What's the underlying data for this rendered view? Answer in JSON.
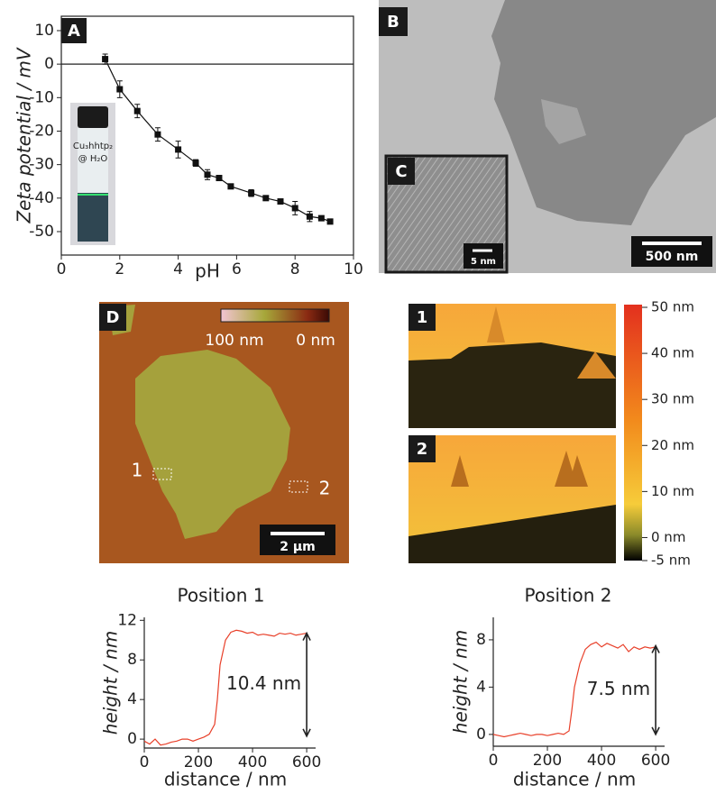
{
  "chart_data": [
    {
      "type": "line",
      "panel_label": "A",
      "xlabel": "pH",
      "ylabel": "Zeta potential / mV",
      "inset_text": [
        "Cu₃hhtp₂",
        "@ H₂O"
      ],
      "xlim": [
        0,
        10
      ],
      "ylim": [
        -57,
        14.3
      ],
      "xticks": [
        0,
        2,
        4,
        6,
        8,
        10
      ],
      "yticks": [
        10,
        0,
        -10,
        -20,
        -30,
        -40,
        -50
      ],
      "reference_line": 0,
      "box": true,
      "series": [
        {
          "color": "#111111",
          "x": [
            1.5,
            2.0,
            2.6,
            3.3,
            4.0,
            4.6,
            5.0,
            5.4,
            5.8,
            6.5,
            7.0,
            7.5,
            8.0,
            8.5,
            8.9,
            9.2
          ],
          "values": [
            1.5,
            -7.5,
            -14,
            -21,
            -25.5,
            -29.5,
            -33,
            -34,
            -36.5,
            -38.5,
            -40,
            -41,
            -43,
            -45.5,
            -46,
            -47
          ],
          "errors": [
            1.5,
            2.5,
            2,
            2,
            2.5,
            1,
            1.5,
            0.5,
            0.5,
            1,
            0.5,
            0.5,
            2,
            1.5,
            0.5,
            0.5
          ]
        }
      ]
    },
    {
      "type": "line",
      "title": "Position 1",
      "xlabel": "distance / nm",
      "ylabel": "height / nm",
      "xlim": [
        0,
        633
      ],
      "ylim": [
        -0.9,
        12.3
      ],
      "xticks": [
        0,
        200,
        400,
        600
      ],
      "yticks": [
        0,
        4,
        8,
        12
      ],
      "box": false,
      "annotation": "10.4 nm",
      "arrow": {
        "x": 600,
        "from": 0.3,
        "to": 10.7
      },
      "series": [
        {
          "color": "#e8402a",
          "x": [
            0,
            20,
            40,
            60,
            80,
            100,
            120,
            140,
            160,
            180,
            200,
            220,
            240,
            260,
            270,
            280,
            300,
            320,
            340,
            360,
            380,
            400,
            420,
            440,
            460,
            480,
            500,
            520,
            540,
            560,
            580,
            600
          ],
          "values": [
            -0.2,
            -0.5,
            0,
            -0.6,
            -0.5,
            -0.3,
            -0.2,
            0,
            0,
            -0.2,
            0,
            0.2,
            0.5,
            1.5,
            4,
            7.5,
            10,
            10.8,
            11,
            10.9,
            10.7,
            10.8,
            10.5,
            10.6,
            10.5,
            10.4,
            10.7,
            10.6,
            10.7,
            10.5,
            10.6,
            10.7
          ]
        }
      ]
    },
    {
      "type": "line",
      "title": "Position 2",
      "xlabel": "distance / nm",
      "ylabel": "height / nm",
      "xlim": [
        0,
        633
      ],
      "ylim": [
        -1,
        9.9
      ],
      "xticks": [
        0,
        200,
        400,
        600
      ],
      "yticks": [
        0,
        4,
        8
      ],
      "box": false,
      "annotation": "7.5 nm",
      "arrow": {
        "x": 600,
        "from": 0,
        "to": 7.5
      },
      "series": [
        {
          "color": "#e8402a",
          "x": [
            0,
            20,
            40,
            60,
            80,
            100,
            120,
            140,
            160,
            180,
            200,
            220,
            240,
            260,
            280,
            290,
            300,
            320,
            340,
            360,
            380,
            400,
            420,
            440,
            460,
            480,
            500,
            520,
            540,
            560,
            580,
            600
          ],
          "values": [
            0,
            -0.1,
            -0.2,
            -0.1,
            0,
            0.1,
            0,
            -0.1,
            0,
            0,
            -0.1,
            0,
            0.1,
            0,
            0.3,
            2,
            4,
            6,
            7.2,
            7.6,
            7.8,
            7.4,
            7.7,
            7.5,
            7.3,
            7.6,
            7.0,
            7.4,
            7.2,
            7.4,
            7.3,
            7.4
          ]
        }
      ]
    }
  ],
  "panels": {
    "B": {
      "label": "B",
      "scale": "500 nm"
    },
    "C": {
      "label": "C",
      "scale": "5 nm"
    },
    "D": {
      "label": "D",
      "colorbar": [
        "100 nm",
        "0 nm"
      ],
      "markers": [
        "1",
        "2"
      ],
      "scale": "2 µm"
    },
    "E": {
      "labels": [
        "1",
        "2"
      ],
      "colorbar_range": [
        -5,
        50
      ],
      "colorbar_ticks": [
        {
          "value": 50,
          "label": "50 nm"
        },
        {
          "value": 40,
          "label": "40 nm"
        },
        {
          "value": 30,
          "label": "30 nm"
        },
        {
          "value": 20,
          "label": "20 nm"
        },
        {
          "value": 10,
          "label": "10 nm"
        },
        {
          "value": 0,
          "label": "0 nm"
        },
        {
          "value": -5,
          "label": "-5 nm"
        }
      ]
    }
  }
}
